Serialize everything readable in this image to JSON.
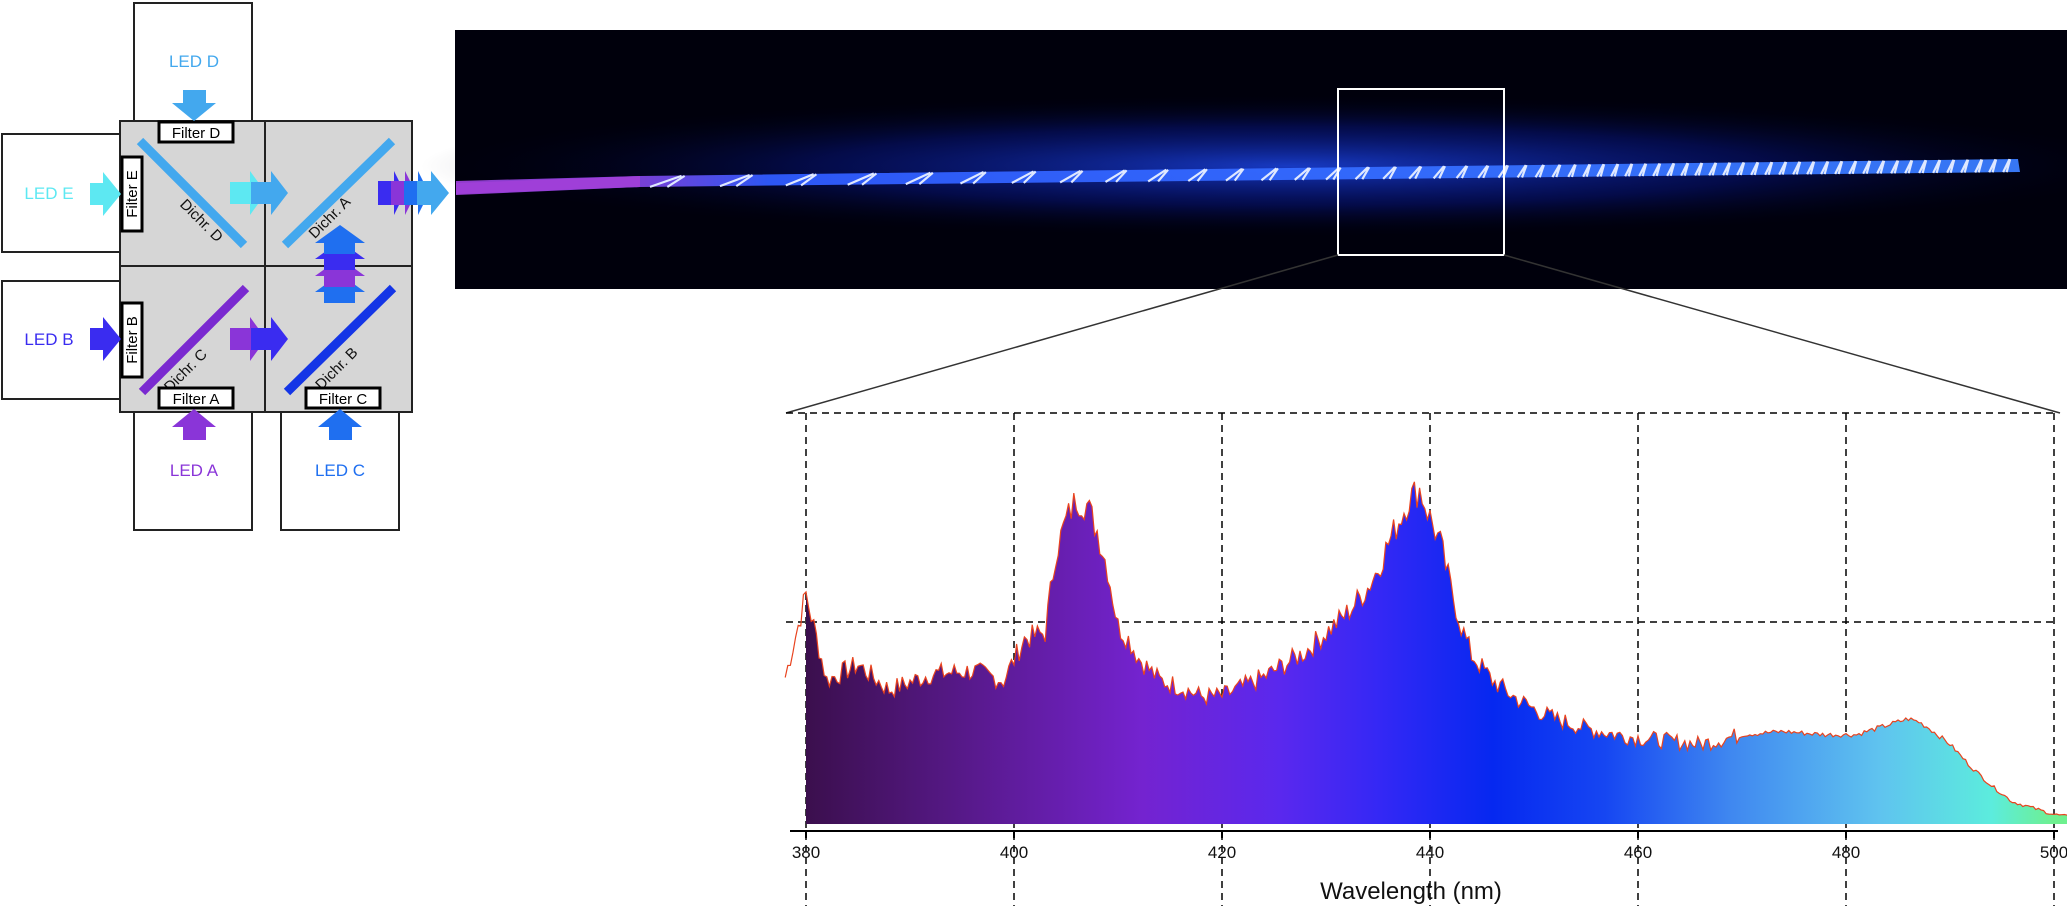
{
  "leds": {
    "a": {
      "label": "LED A",
      "color": "#8a35d8"
    },
    "b": {
      "label": "LED B",
      "color": "#3a2cf0"
    },
    "c": {
      "label": "LED C",
      "color": "#1f6ff0"
    },
    "d": {
      "label": "LED D",
      "color": "#43a8ee"
    },
    "e": {
      "label": "LED E",
      "color": "#5de8f2"
    }
  },
  "filters": {
    "a": "Filter A",
    "b": "Filter B",
    "c": "Filter C",
    "d": "Filter D",
    "e": "Filter E"
  },
  "dichroics": {
    "a": "Dichr. A",
    "b": "Dichr. B",
    "c": "Dichr. C",
    "d": "Dichr. D"
  },
  "chart_data": {
    "type": "area",
    "xlabel": "Wavelength (nm)",
    "ylabel": "",
    "xlim": [
      377.5,
      502
    ],
    "x_ticks": [
      380,
      400,
      420,
      440,
      460,
      480,
      500
    ],
    "grid": true,
    "fill": "wavelength color gradient",
    "outline_color": "#e8431f",
    "series": [
      {
        "x": [
          378,
          380,
          382,
          385,
          388,
          392,
          396,
          399,
          401,
          403,
          404,
          405,
          406,
          407,
          408,
          409,
          410,
          411,
          412,
          414,
          416,
          418,
          420,
          422,
          424,
          426,
          428,
          430,
          432,
          434,
          435,
          436,
          437,
          438,
          439,
          440,
          441,
          442,
          443,
          444,
          446,
          448,
          450,
          452,
          455,
          458,
          460,
          463,
          466,
          470,
          474,
          478,
          481,
          483,
          485,
          486,
          487,
          488,
          490,
          492,
          494,
          496,
          498,
          500,
          502
        ],
        "y": [
          0.46,
          0.72,
          0.45,
          0.5,
          0.42,
          0.47,
          0.48,
          0.45,
          0.58,
          0.6,
          0.85,
          0.95,
          1.02,
          1.0,
          0.92,
          0.8,
          0.62,
          0.58,
          0.52,
          0.45,
          0.43,
          0.4,
          0.4,
          0.43,
          0.46,
          0.5,
          0.54,
          0.6,
          0.66,
          0.74,
          0.8,
          0.88,
          0.95,
          1.02,
          1.05,
          0.96,
          0.88,
          0.74,
          0.62,
          0.53,
          0.45,
          0.4,
          0.36,
          0.33,
          0.3,
          0.28,
          0.27,
          0.26,
          0.25,
          0.28,
          0.29,
          0.28,
          0.28,
          0.3,
          0.32,
          0.33,
          0.32,
          0.3,
          0.25,
          0.18,
          0.12,
          0.07,
          0.05,
          0.03,
          0.02
        ]
      }
    ]
  }
}
